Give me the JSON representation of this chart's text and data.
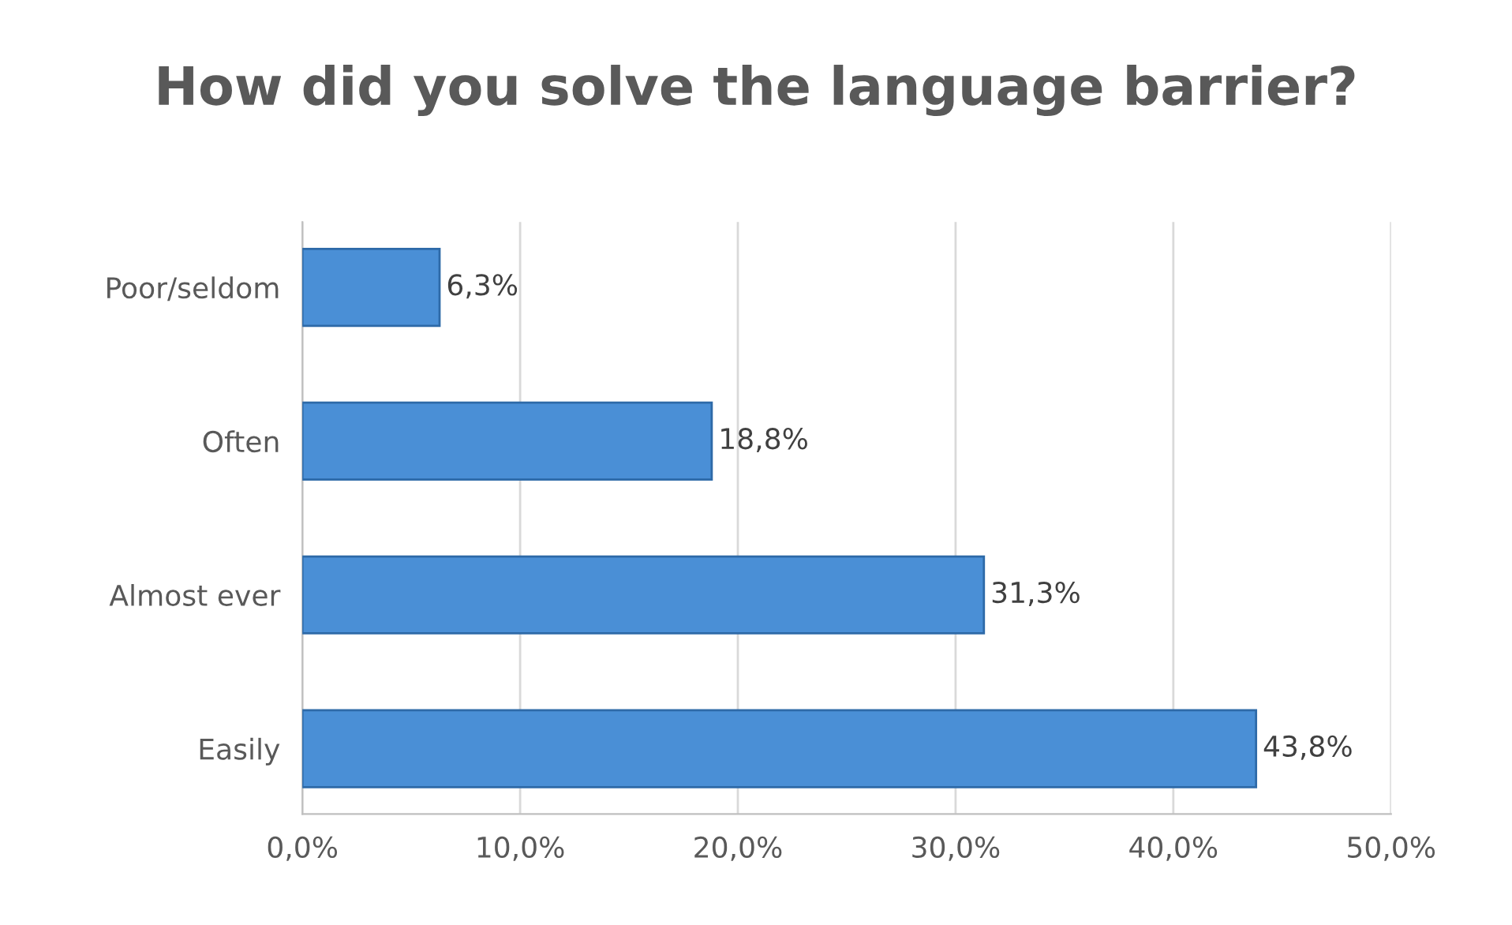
{
  "chart_data": {
    "type": "bar",
    "orientation": "horizontal",
    "title": "How did you solve the language barrier?",
    "categories": [
      "Poor/seldom",
      "Often",
      "Almost ever",
      "Easily"
    ],
    "values": [
      6.3,
      18.8,
      31.3,
      43.8
    ],
    "value_labels": [
      "6,3%",
      "18,8%",
      "31,3%",
      "43,8%"
    ],
    "color": "#4a8fd6",
    "xlim": [
      0,
      50
    ],
    "xticks": [
      {
        "value": 0,
        "label": "0,0%"
      },
      {
        "value": 10,
        "label": "10,0%"
      },
      {
        "value": 20,
        "label": "20,0%"
      },
      {
        "value": 30,
        "label": "30,0%"
      },
      {
        "value": 40,
        "label": "40,0%"
      },
      {
        "value": 50,
        "label": "50,0%"
      }
    ],
    "grid": "x"
  }
}
